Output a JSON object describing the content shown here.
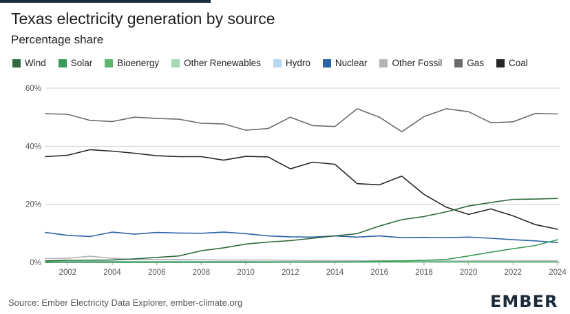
{
  "header": {
    "title": "Texas electricity generation by source",
    "subtitle": "Percentage share"
  },
  "footer": {
    "source": "Source: Ember Electricity Data Explorer, ember-climate.org",
    "logo": "EMBER"
  },
  "chart_data": {
    "type": "line",
    "title": "Texas electricity generation by source",
    "subtitle": "Percentage share",
    "xlabel": "",
    "ylabel": "",
    "ylim": [
      0,
      60
    ],
    "xlim": [
      2001,
      2024
    ],
    "y_ticks": [
      0,
      20,
      40,
      60
    ],
    "y_tick_labels": [
      "0%",
      "20%",
      "40%",
      "60%"
    ],
    "x_ticks": [
      2002,
      2004,
      2006,
      2008,
      2010,
      2012,
      2014,
      2016,
      2018,
      2020,
      2022,
      2024
    ],
    "x_tick_labels": [
      "2002",
      "2004",
      "2006",
      "2008",
      "2010",
      "2012",
      "2014",
      "2016",
      "2018",
      "2020",
      "2022",
      "2024"
    ],
    "grid": "horizontal",
    "legend_position": "top",
    "x": [
      2001,
      2002,
      2003,
      2004,
      2005,
      2006,
      2007,
      2008,
      2009,
      2010,
      2011,
      2012,
      2013,
      2014,
      2015,
      2016,
      2017,
      2018,
      2019,
      2020,
      2021,
      2022,
      2023,
      2024
    ],
    "series": [
      {
        "name": "Wind",
        "color": "#2f6b3f",
        "values": [
          0.5,
          0.7,
          0.7,
          0.8,
          1.2,
          1.7,
          2.2,
          4.0,
          5.0,
          6.3,
          7.0,
          7.5,
          8.3,
          9.1,
          9.9,
          12.5,
          14.7,
          15.8,
          17.4,
          19.4,
          20.6,
          21.7,
          21.8,
          22.0
        ]
      },
      {
        "name": "Solar",
        "color": "#3c9a5b",
        "values": [
          0,
          0,
          0,
          0,
          0,
          0,
          0,
          0,
          0,
          0,
          0.05,
          0.1,
          0.1,
          0.1,
          0.2,
          0.4,
          0.5,
          0.7,
          1.0,
          2.2,
          3.5,
          4.7,
          5.8,
          7.8
        ]
      },
      {
        "name": "Bioenergy",
        "color": "#5cb46e",
        "values": [
          0.2,
          0.2,
          0.2,
          0.2,
          0.2,
          0.2,
          0.2,
          0.2,
          0.2,
          0.2,
          0.2,
          0.2,
          0.2,
          0.2,
          0.2,
          0.2,
          0.2,
          0.2,
          0.2,
          0.2,
          0.2,
          0.2,
          0.2,
          0.2
        ]
      },
      {
        "name": "Other Renewables",
        "color": "#a6d8b4",
        "values": [
          0,
          0,
          0,
          0,
          0,
          0,
          0,
          0,
          0,
          0,
          0,
          0,
          0,
          0,
          0,
          0,
          0,
          0,
          0,
          0,
          0,
          0,
          0,
          0
        ]
      },
      {
        "name": "Hydro",
        "color": "#b7d7f1",
        "values": [
          0.2,
          0.3,
          0.3,
          0.3,
          0.3,
          0.3,
          0.4,
          0.3,
          0.3,
          0.3,
          0.2,
          0.2,
          0.2,
          0.2,
          0.3,
          0.3,
          0.3,
          0.3,
          0.3,
          0.2,
          0.2,
          0.2,
          0.2,
          0.2
        ]
      },
      {
        "name": "Nuclear",
        "color": "#2c63a7",
        "values": [
          10.3,
          9.3,
          8.9,
          10.4,
          9.7,
          10.3,
          10.1,
          10.0,
          10.4,
          9.9,
          9.1,
          8.8,
          8.7,
          9.1,
          8.7,
          9.1,
          8.5,
          8.6,
          8.5,
          8.7,
          8.3,
          7.8,
          7.4,
          6.8
        ]
      },
      {
        "name": "Other Fossil",
        "color": "#b4b4b4",
        "values": [
          1.3,
          1.4,
          2.1,
          1.4,
          1.0,
          1.0,
          1.0,
          0.9,
          0.8,
          0.8,
          0.8,
          0.7,
          0.6,
          0.6,
          0.6,
          0.6,
          0.5,
          0.5,
          0.5,
          0.5,
          0.5,
          0.5,
          0.5,
          0.5
        ]
      },
      {
        "name": "Gas",
        "color": "#6b6b6b",
        "values": [
          51.2,
          51.0,
          48.9,
          48.5,
          50.0,
          49.6,
          49.3,
          47.9,
          47.7,
          45.5,
          46.1,
          50.0,
          47.1,
          46.8,
          52.9,
          50.0,
          45.0,
          50.2,
          52.9,
          51.9,
          48.1,
          48.4,
          51.3,
          51.1
        ]
      },
      {
        "name": "Coal",
        "color": "#262626",
        "values": [
          36.4,
          36.9,
          38.8,
          38.3,
          37.6,
          36.7,
          36.4,
          36.4,
          35.2,
          36.5,
          36.3,
          32.2,
          34.5,
          33.8,
          27.1,
          26.7,
          29.7,
          23.4,
          19.0,
          16.5,
          18.4,
          16.0,
          13.0,
          11.4
        ]
      }
    ]
  }
}
